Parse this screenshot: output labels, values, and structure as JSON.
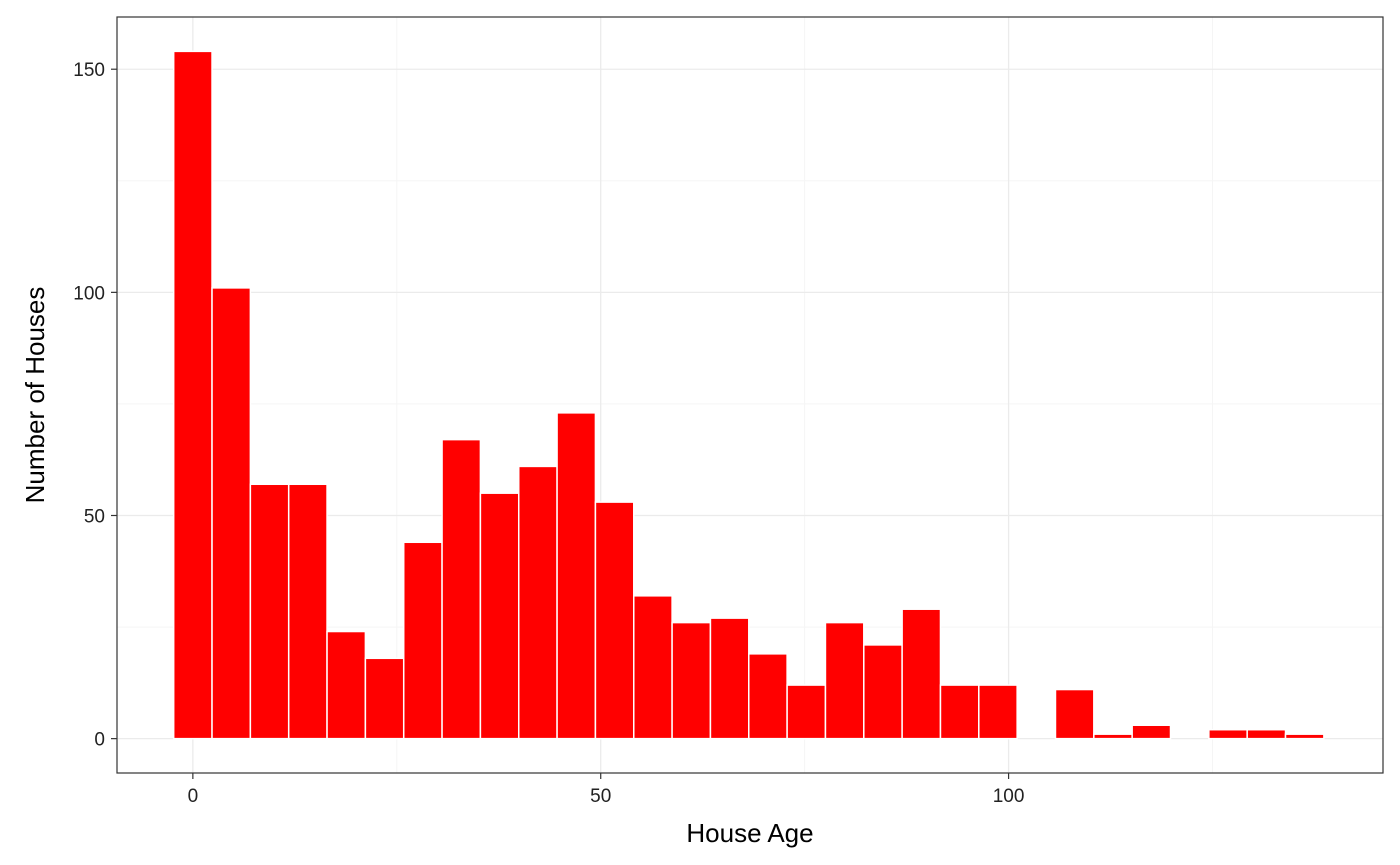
{
  "chart_data": {
    "type": "bar",
    "title": "",
    "xlabel": "House Age",
    "ylabel": "Number of Houses",
    "bin_width": 4.7,
    "bins": [
      {
        "x": 0,
        "count": 154
      },
      {
        "x": 4.7,
        "count": 101
      },
      {
        "x": 9.4,
        "count": 57
      },
      {
        "x": 14.1,
        "count": 57
      },
      {
        "x": 18.8,
        "count": 24
      },
      {
        "x": 23.5,
        "count": 18
      },
      {
        "x": 28.2,
        "count": 44
      },
      {
        "x": 32.9,
        "count": 67
      },
      {
        "x": 37.6,
        "count": 55
      },
      {
        "x": 42.3,
        "count": 61
      },
      {
        "x": 47.0,
        "count": 73
      },
      {
        "x": 51.7,
        "count": 53
      },
      {
        "x": 56.4,
        "count": 32
      },
      {
        "x": 61.1,
        "count": 26
      },
      {
        "x": 65.8,
        "count": 27
      },
      {
        "x": 70.5,
        "count": 19
      },
      {
        "x": 75.2,
        "count": 12
      },
      {
        "x": 79.9,
        "count": 26
      },
      {
        "x": 84.6,
        "count": 21
      },
      {
        "x": 89.3,
        "count": 29
      },
      {
        "x": 94.0,
        "count": 12
      },
      {
        "x": 98.7,
        "count": 12
      },
      {
        "x": 103.4,
        "count": 0
      },
      {
        "x": 108.1,
        "count": 11
      },
      {
        "x": 112.8,
        "count": 1
      },
      {
        "x": 117.5,
        "count": 3
      },
      {
        "x": 122.2,
        "count": 0
      },
      {
        "x": 126.9,
        "count": 2
      },
      {
        "x": 131.6,
        "count": 2
      },
      {
        "x": 136.3,
        "count": 1
      }
    ],
    "xlim": [
      -9.3,
      145.9
    ],
    "ylim": [
      -7.7,
      161.7
    ],
    "x_ticks": [
      0,
      50,
      100
    ],
    "y_ticks": [
      0,
      50,
      100,
      150
    ],
    "grid": true,
    "colors": {
      "bar_fill": "#ff0000",
      "bar_outline": "#ffffff",
      "grid_major": "#ebebeb",
      "grid_minor": "#f5f5f5",
      "panel_border": "#333333"
    }
  }
}
